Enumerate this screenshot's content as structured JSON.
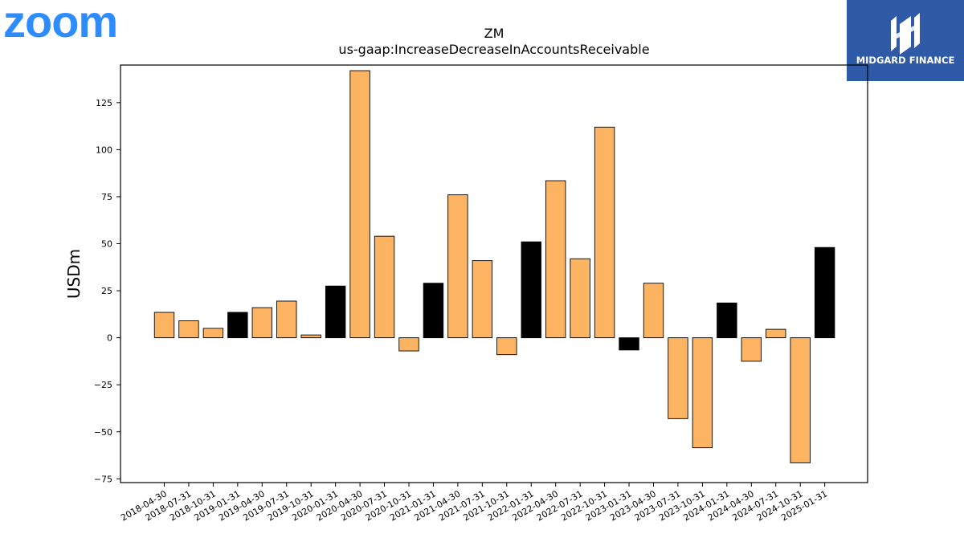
{
  "logos": {
    "zoom_text": "zoom",
    "midgard_text": "MIDGARD FINANCE"
  },
  "colors": {
    "bar_fill": "#fdb462",
    "bar_fill_q4": "#000000",
    "bar_edge": "#000000"
  },
  "chart_data": {
    "type": "bar",
    "title": "ZM",
    "subtitle": "us-gaap:IncreaseDecreaseInAccountsReceivable",
    "xlabel": "",
    "ylabel": "USDm",
    "ylim": [
      -77,
      145
    ],
    "yticks": [
      -75,
      -50,
      -25,
      0,
      25,
      50,
      75,
      100,
      125
    ],
    "grid": false,
    "categories": [
      "2018-04-30",
      "2018-07-31",
      "2018-10-31",
      "2019-01-31",
      "2019-04-30",
      "2019-07-31",
      "2019-10-31",
      "2020-01-31",
      "2020-04-30",
      "2020-07-31",
      "2020-10-31",
      "2021-01-31",
      "2021-04-30",
      "2021-07-31",
      "2021-10-31",
      "2022-01-31",
      "2022-04-30",
      "2022-07-31",
      "2022-10-31",
      "2023-01-31",
      "2023-04-30",
      "2023-07-31",
      "2023-10-31",
      "2024-01-31",
      "2024-04-30",
      "2024-07-31",
      "2024-10-31",
      "2025-01-31"
    ],
    "values": [
      13.5,
      9,
      5,
      13.5,
      16,
      19.5,
      1.5,
      27.5,
      142,
      54,
      -7,
      29,
      76,
      41,
      -9,
      51,
      83.5,
      42,
      112,
      -6.5,
      29,
      -43,
      -58.5,
      18.5,
      -12.5,
      4.5,
      -66.5,
      48
    ],
    "highlight": [
      false,
      false,
      false,
      true,
      false,
      false,
      false,
      true,
      false,
      false,
      false,
      true,
      false,
      false,
      false,
      true,
      false,
      false,
      false,
      true,
      false,
      false,
      false,
      true,
      false,
      false,
      false,
      true
    ]
  }
}
